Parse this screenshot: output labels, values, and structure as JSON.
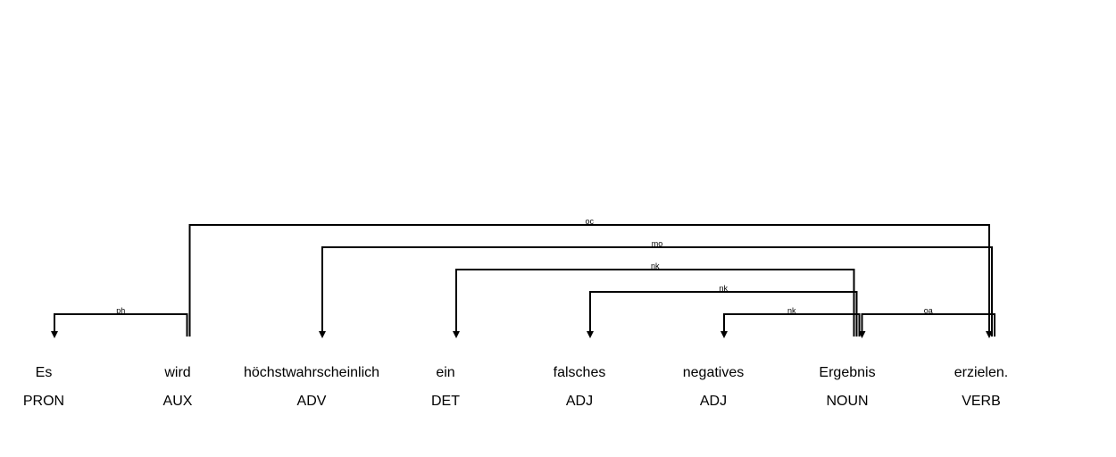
{
  "tokens": [
    {
      "text": "Es",
      "tag": "PRON"
    },
    {
      "text": "wird",
      "tag": "AUX"
    },
    {
      "text": "höchstwahrscheinlich",
      "tag": "ADV"
    },
    {
      "text": "ein",
      "tag": "DET"
    },
    {
      "text": "falsches",
      "tag": "ADJ"
    },
    {
      "text": "negatives",
      "tag": "ADJ"
    },
    {
      "text": "Ergebnis",
      "tag": "NOUN"
    },
    {
      "text": "erzielen.",
      "tag": "VERB"
    }
  ],
  "arcs": [
    {
      "label": "ph",
      "head": 1,
      "dep": 0
    },
    {
      "label": "oc",
      "head": 1,
      "dep": 7
    },
    {
      "label": "mo",
      "head": 7,
      "dep": 2
    },
    {
      "label": "nk",
      "head": 6,
      "dep": 3
    },
    {
      "label": "nk",
      "head": 6,
      "dep": 4
    },
    {
      "label": "nk",
      "head": 6,
      "dep": 5
    },
    {
      "label": "oa",
      "head": 7,
      "dep": 6
    }
  ],
  "colors": {
    "line": "#000000",
    "text": "#000000",
    "background": "#ffffff"
  }
}
